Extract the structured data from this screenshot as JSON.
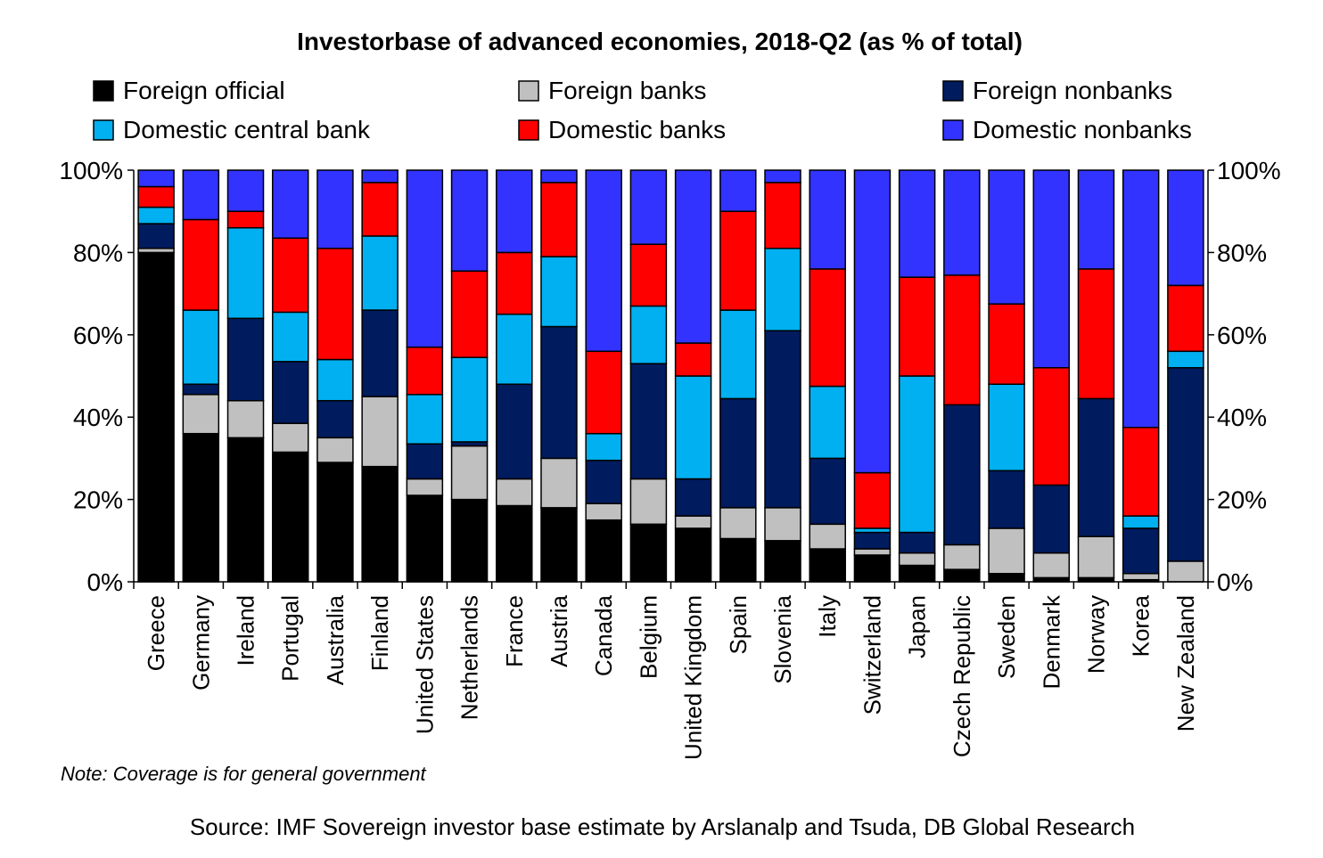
{
  "chart_data": {
    "type": "bar",
    "stacked": true,
    "title": "Investorbase of advanced economies, 2018-Q2 (as % of total)",
    "note": "Note: Coverage is for general government",
    "source": "Source: IMF Sovereign investor base estimate by Arslanalp and Tsuda, DB Global Research",
    "ylim": [
      0,
      100
    ],
    "yticks": [
      "0%",
      "20%",
      "40%",
      "60%",
      "80%",
      "100%"
    ],
    "legend_placement": "top",
    "grid": false,
    "categories": [
      "Greece",
      "Germany",
      "Ireland",
      "Portugal",
      "Australia",
      "Finland",
      "United States",
      "Netherlands",
      "France",
      "Austria",
      "Canada",
      "Belgium",
      "United Kingdom",
      "Spain",
      "Slovenia",
      "Italy",
      "Switzerland",
      "Japan",
      "Czech Republic",
      "Sweden",
      "Denmark",
      "Norway",
      "Korea",
      "New Zealand"
    ],
    "series": [
      {
        "name": "Foreign official",
        "color": "#000000",
        "values": [
          80,
          36,
          35,
          31.5,
          29,
          28,
          21,
          20,
          18.5,
          18,
          15,
          14,
          13,
          10.5,
          10,
          8,
          6.5,
          4,
          3,
          2,
          1,
          1,
          0.5,
          0
        ]
      },
      {
        "name": "Foreign banks",
        "color": "#c0c0c0",
        "values": [
          1,
          9.5,
          9,
          7,
          6,
          17,
          4,
          13,
          6.5,
          12,
          4,
          11,
          3,
          7.5,
          8,
          6,
          1.5,
          3,
          6,
          11,
          6,
          10,
          1.5,
          5
        ]
      },
      {
        "name": "Foreign nonbanks",
        "color": "#001b5e",
        "values": [
          6,
          2.5,
          20,
          15,
          9,
          21,
          8.5,
          1,
          23,
          32,
          10.5,
          28,
          9,
          26.5,
          43,
          16,
          4,
          5,
          34,
          14,
          16.5,
          33.5,
          11,
          47
        ]
      },
      {
        "name": "Domestic central bank",
        "color": "#00b0f0",
        "values": [
          4,
          18,
          22,
          12,
          10,
          18,
          12,
          20.5,
          17,
          17,
          6.5,
          14,
          25,
          21.5,
          20,
          17.5,
          1,
          38,
          0,
          21,
          0,
          0,
          3,
          4
        ]
      },
      {
        "name": "Domestic banks",
        "color": "#ff0000",
        "values": [
          5,
          22,
          4,
          18,
          27,
          13,
          11.5,
          21,
          15,
          18,
          20,
          15,
          8,
          24,
          16,
          28.5,
          13.5,
          24,
          31.5,
          19.5,
          28.5,
          31.5,
          21.5,
          16
        ]
      },
      {
        "name": "Domestic nonbanks",
        "color": "#3333ff",
        "values": [
          4,
          12,
          10,
          16.5,
          19,
          3,
          43,
          24.5,
          20,
          3,
          44,
          18,
          42,
          10,
          3,
          24,
          73.5,
          26,
          25.5,
          32.5,
          48,
          24,
          62.5,
          28
        ]
      }
    ]
  }
}
